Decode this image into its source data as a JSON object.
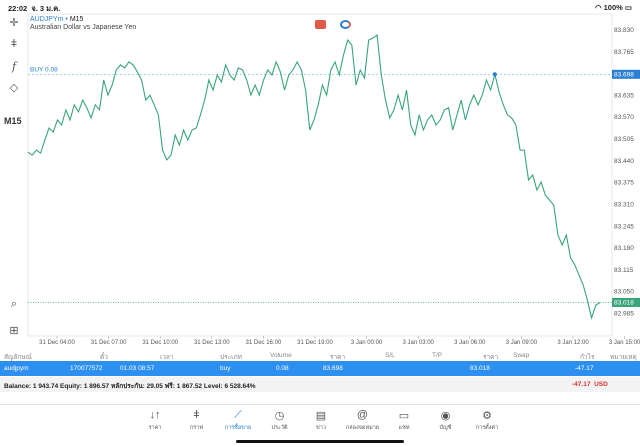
{
  "status": {
    "time": "22:02",
    "date": "จ. 3 ม.ค.",
    "battery": "100%"
  },
  "symbol": {
    "name": "AUDJPYm",
    "sep": "•",
    "timeframe": "M15",
    "description": "Australian Dollar vs Japanese Yen"
  },
  "toolbar": {
    "timeframe": "M15",
    "icons": [
      "crosshair-icon",
      "candles-icon",
      "function-icon",
      "objects-icon"
    ]
  },
  "chart_data": {
    "type": "line",
    "symbol": "AUDJPYm",
    "color": "#3aa57a",
    "yticks": [
      83.83,
      83.765,
      83.635,
      83.57,
      83.505,
      83.44,
      83.375,
      83.31,
      83.245,
      83.18,
      83.115,
      83.05,
      82.985
    ],
    "ylim": [
      82.97,
      83.85
    ],
    "xticks": [
      "31 Dec 04:00",
      "31 Dec 07:00",
      "31 Dec 10:00",
      "31 Dec 13:00",
      "31 Dec 16:00",
      "31 Dec 19:00",
      "3 Jan 00:00",
      "3 Jan 03:00",
      "3 Jan 06:00",
      "3 Jan 09:00",
      "3 Jan 12:00",
      "3 Jan 15:00"
    ],
    "buy_line": {
      "label": "BUY 0.08",
      "price": 83.698,
      "price_label": "83.698"
    },
    "bid_line": {
      "price": 83.018,
      "price_label": "83.018"
    },
    "values": [
      83.466,
      83.457,
      83.472,
      83.463,
      83.502,
      83.538,
      83.526,
      83.562,
      83.547,
      83.592,
      83.562,
      83.607,
      83.586,
      83.621,
      83.598,
      83.568,
      83.607,
      83.592,
      83.681,
      83.636,
      83.666,
      83.711,
      83.726,
      83.717,
      83.735,
      83.726,
      83.705,
      83.681,
      83.621,
      83.636,
      83.607,
      83.577,
      83.472,
      83.443,
      83.457,
      83.517,
      83.487,
      83.532,
      83.502,
      83.532,
      83.538,
      83.577,
      83.621,
      83.681,
      83.651,
      83.696,
      83.675,
      83.726,
      83.696,
      83.681,
      83.717,
      83.711,
      83.681,
      83.636,
      83.666,
      83.636,
      83.681,
      83.711,
      83.696,
      83.735,
      83.705,
      83.651,
      83.696,
      83.711,
      83.735,
      83.711,
      83.651,
      83.532,
      83.562,
      83.607,
      83.666,
      83.636,
      83.711,
      83.735,
      83.696,
      83.755,
      83.8,
      83.785,
      83.666,
      83.711,
      83.687,
      83.8,
      83.806,
      83.815,
      83.696,
      83.621,
      83.568,
      83.592,
      83.636,
      83.592,
      83.651,
      83.547,
      83.517,
      83.577,
      83.532,
      83.562,
      83.577,
      83.547,
      83.562,
      83.592,
      83.598,
      83.532,
      83.577,
      83.621,
      83.562,
      83.607,
      83.636,
      83.607,
      83.636,
      83.681,
      83.651,
      83.698,
      83.645,
      83.607,
      83.577,
      83.568,
      83.547,
      83.472,
      83.472,
      83.383,
      83.398,
      83.353,
      83.377,
      83.338,
      83.323,
      83.308,
      83.219,
      83.189,
      83.219,
      83.151,
      83.13,
      83.1,
      83.07,
      83.025,
      82.972,
      83.01,
      83.018
    ]
  },
  "table": {
    "headers": [
      "สัญลักษณ์",
      "ตั๋ว",
      "เวลา",
      "ประเภท",
      "Volume",
      "ราคา",
      "S/L",
      "T/P",
      "ราคา",
      "Swap",
      "กำไร",
      "หมายเหตุ"
    ],
    "rows": [
      [
        "audjpym",
        "170077572",
        "01.03 08:57",
        "buy",
        "0.08",
        "83.698",
        "",
        "",
        "83.018",
        "",
        "-47.17",
        ""
      ]
    ]
  },
  "balance": {
    "text": "Balance: 1 943.74 Equity: 1 896.57 หลักประกัน: 29.05 ฟรี: 1 867.52 Level: 6 528.64%",
    "profit": "-47.17",
    "currency": "USD"
  },
  "nav": [
    {
      "label": "ราคา",
      "icon": "↓↑"
    },
    {
      "label": "กราฟ",
      "icon": "ǂ"
    },
    {
      "label": "การซื้อขาย",
      "icon": "⟋",
      "active": true
    },
    {
      "label": "ประวัติ",
      "icon": "◷"
    },
    {
      "label": "ข่าว",
      "icon": "▤"
    },
    {
      "label": "กล่องจดหมาย",
      "icon": "@"
    },
    {
      "label": "แชท",
      "icon": "▭"
    },
    {
      "label": "บัญชี",
      "icon": "◉"
    },
    {
      "label": "การตั้งค่า",
      "icon": "⚙"
    }
  ]
}
